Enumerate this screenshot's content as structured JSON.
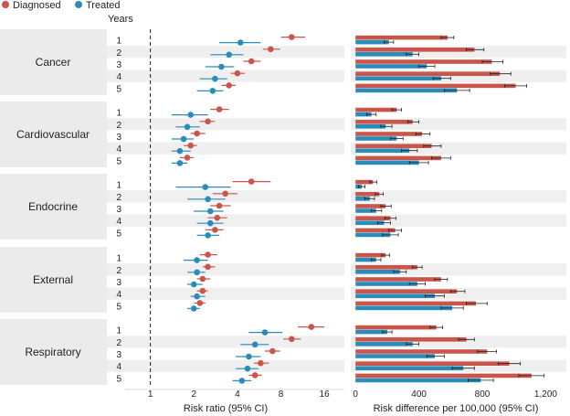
{
  "legend": {
    "items": [
      {
        "label": "Diagnosed",
        "color": "#c9554b"
      },
      {
        "label": "Treated",
        "color": "#2a8cb8"
      }
    ],
    "placement": "top-left"
  },
  "years_label": "Years",
  "chart_data": [
    {
      "type": "scatter",
      "subtype": "forest-plot",
      "xlabel": "Risk ratio (95% CI)",
      "xscale": "log",
      "xlim": [
        0.5,
        22
      ],
      "xticks": [
        1,
        2,
        4,
        8,
        16
      ],
      "xtick_labels": [
        "1",
        "2",
        "4",
        "8",
        "16"
      ],
      "reference_line": 1,
      "panels": [
        {
          "name": "Cancer",
          "years": [
            "1",
            "2",
            "3",
            "4",
            "5"
          ],
          "diagnosed": [
            {
              "v": 9.5,
              "lo": 8.0,
              "hi": 11.8
            },
            {
              "v": 6.8,
              "lo": 6.0,
              "hi": 7.9
            },
            {
              "v": 5.0,
              "lo": 4.4,
              "hi": 5.8
            },
            {
              "v": 4.0,
              "lo": 3.6,
              "hi": 4.5
            },
            {
              "v": 3.5,
              "lo": 3.1,
              "hi": 3.9
            }
          ],
          "treated": [
            {
              "v": 4.2,
              "lo": 3.0,
              "hi": 5.8
            },
            {
              "v": 3.5,
              "lo": 2.6,
              "hi": 4.4
            },
            {
              "v": 3.1,
              "lo": 2.4,
              "hi": 3.8
            },
            {
              "v": 2.8,
              "lo": 2.2,
              "hi": 3.4
            },
            {
              "v": 2.7,
              "lo": 2.1,
              "hi": 3.2
            }
          ]
        },
        {
          "name": "Cardiovascular",
          "years": [
            "1",
            "2",
            "3",
            "4",
            "5"
          ],
          "diagnosed": [
            {
              "v": 3.0,
              "lo": 2.6,
              "hi": 3.5
            },
            {
              "v": 2.5,
              "lo": 2.2,
              "hi": 2.8
            },
            {
              "v": 2.1,
              "lo": 1.9,
              "hi": 2.4
            },
            {
              "v": 1.9,
              "lo": 1.7,
              "hi": 2.1
            },
            {
              "v": 1.8,
              "lo": 1.6,
              "hi": 2.0
            }
          ],
          "treated": [
            {
              "v": 1.9,
              "lo": 1.4,
              "hi": 2.5
            },
            {
              "v": 1.8,
              "lo": 1.5,
              "hi": 2.2
            },
            {
              "v": 1.7,
              "lo": 1.4,
              "hi": 2.0
            },
            {
              "v": 1.6,
              "lo": 1.4,
              "hi": 1.9
            },
            {
              "v": 1.6,
              "lo": 1.4,
              "hi": 1.8
            }
          ]
        },
        {
          "name": "Endocrine",
          "years": [
            "1",
            "2",
            "3",
            "4",
            "5"
          ],
          "diagnosed": [
            {
              "v": 5.0,
              "lo": 3.7,
              "hi": 6.8
            },
            {
              "v": 3.3,
              "lo": 2.7,
              "hi": 4.0
            },
            {
              "v": 3.0,
              "lo": 2.6,
              "hi": 3.6
            },
            {
              "v": 2.9,
              "lo": 2.5,
              "hi": 3.4
            },
            {
              "v": 2.8,
              "lo": 2.4,
              "hi": 3.2
            }
          ],
          "treated": [
            {
              "v": 2.4,
              "lo": 1.5,
              "hi": 3.6
            },
            {
              "v": 2.5,
              "lo": 1.8,
              "hi": 3.3
            },
            {
              "v": 2.6,
              "lo": 2.0,
              "hi": 3.2
            },
            {
              "v": 2.6,
              "lo": 2.1,
              "hi": 3.2
            },
            {
              "v": 2.5,
              "lo": 2.1,
              "hi": 3.0
            }
          ]
        },
        {
          "name": "External",
          "years": [
            "1",
            "2",
            "3",
            "4",
            "5"
          ],
          "diagnosed": [
            {
              "v": 2.5,
              "lo": 2.2,
              "hi": 2.9
            },
            {
              "v": 2.5,
              "lo": 2.3,
              "hi": 2.8
            },
            {
              "v": 2.3,
              "lo": 2.1,
              "hi": 2.6
            },
            {
              "v": 2.3,
              "lo": 2.1,
              "hi": 2.5
            },
            {
              "v": 2.2,
              "lo": 2.0,
              "hi": 2.4
            }
          ],
          "treated": [
            {
              "v": 2.1,
              "lo": 1.7,
              "hi": 2.5
            },
            {
              "v": 2.1,
              "lo": 1.8,
              "hi": 2.4
            },
            {
              "v": 2.0,
              "lo": 1.8,
              "hi": 2.3
            },
            {
              "v": 2.1,
              "lo": 1.9,
              "hi": 2.4
            },
            {
              "v": 2.0,
              "lo": 1.8,
              "hi": 2.2
            }
          ]
        },
        {
          "name": "Respiratory",
          "years": [
            "1",
            "2",
            "3",
            "4",
            "5"
          ],
          "diagnosed": [
            {
              "v": 13.0,
              "lo": 10.5,
              "hi": 16.0
            },
            {
              "v": 9.5,
              "lo": 8.3,
              "hi": 11.0
            },
            {
              "v": 7.0,
              "lo": 6.2,
              "hi": 7.9
            },
            {
              "v": 5.8,
              "lo": 5.2,
              "hi": 6.6
            },
            {
              "v": 5.3,
              "lo": 4.8,
              "hi": 5.9
            }
          ],
          "treated": [
            {
              "v": 6.2,
              "lo": 4.8,
              "hi": 8.2
            },
            {
              "v": 5.3,
              "lo": 4.2,
              "hi": 6.6
            },
            {
              "v": 4.8,
              "lo": 3.9,
              "hi": 5.8
            },
            {
              "v": 4.7,
              "lo": 3.9,
              "hi": 5.6
            },
            {
              "v": 4.3,
              "lo": 3.7,
              "hi": 5.0
            }
          ]
        }
      ]
    },
    {
      "type": "bar",
      "orientation": "horizontal",
      "xlabel": "Risk difference per 100,000 (95% CI)",
      "xlim": [
        -30,
        1330
      ],
      "xticks": [
        0,
        400,
        800,
        1200
      ],
      "xtick_labels": [
        "0",
        "400",
        "800",
        "1,200"
      ],
      "panels": [
        {
          "name": "Cancer",
          "years": [
            "1",
            "2",
            "3",
            "4",
            "5"
          ],
          "diagnosed": [
            {
              "v": 580,
              "lo": 540,
              "hi": 620
            },
            {
              "v": 750,
              "lo": 700,
              "hi": 810
            },
            {
              "v": 860,
              "lo": 800,
              "hi": 930
            },
            {
              "v": 910,
              "lo": 850,
              "hi": 980
            },
            {
              "v": 1010,
              "lo": 940,
              "hi": 1080
            }
          ],
          "treated": [
            {
              "v": 210,
              "lo": 180,
              "hi": 240
            },
            {
              "v": 360,
              "lo": 320,
              "hi": 400
            },
            {
              "v": 450,
              "lo": 400,
              "hi": 500
            },
            {
              "v": 540,
              "lo": 490,
              "hi": 600
            },
            {
              "v": 640,
              "lo": 560,
              "hi": 720
            }
          ]
        },
        {
          "name": "Cardiovascular",
          "years": [
            "1",
            "2",
            "3",
            "4",
            "5"
          ],
          "diagnosed": [
            {
              "v": 260,
              "lo": 230,
              "hi": 290
            },
            {
              "v": 360,
              "lo": 330,
              "hi": 400
            },
            {
              "v": 420,
              "lo": 380,
              "hi": 470
            },
            {
              "v": 480,
              "lo": 430,
              "hi": 540
            },
            {
              "v": 540,
              "lo": 480,
              "hi": 600
            }
          ],
          "treated": [
            {
              "v": 100,
              "lo": 70,
              "hi": 130
            },
            {
              "v": 190,
              "lo": 160,
              "hi": 230
            },
            {
              "v": 260,
              "lo": 220,
              "hi": 300
            },
            {
              "v": 340,
              "lo": 290,
              "hi": 390
            },
            {
              "v": 400,
              "lo": 340,
              "hi": 460
            }
          ]
        },
        {
          "name": "Endocrine",
          "years": [
            "1",
            "2",
            "3",
            "4",
            "5"
          ],
          "diagnosed": [
            {
              "v": 110,
              "lo": 90,
              "hi": 135
            },
            {
              "v": 150,
              "lo": 125,
              "hi": 175
            },
            {
              "v": 190,
              "lo": 160,
              "hi": 225
            },
            {
              "v": 220,
              "lo": 185,
              "hi": 255
            },
            {
              "v": 250,
              "lo": 210,
              "hi": 290
            }
          ],
          "treated": [
            {
              "v": 40,
              "lo": 20,
              "hi": 60
            },
            {
              "v": 90,
              "lo": 60,
              "hi": 120
            },
            {
              "v": 130,
              "lo": 100,
              "hi": 165
            },
            {
              "v": 180,
              "lo": 140,
              "hi": 220
            },
            {
              "v": 220,
              "lo": 170,
              "hi": 270
            }
          ]
        },
        {
          "name": "External",
          "years": [
            "1",
            "2",
            "3",
            "4",
            "5"
          ],
          "diagnosed": [
            {
              "v": 190,
              "lo": 165,
              "hi": 215
            },
            {
              "v": 390,
              "lo": 360,
              "hi": 420
            },
            {
              "v": 540,
              "lo": 500,
              "hi": 580
            },
            {
              "v": 640,
              "lo": 600,
              "hi": 690
            },
            {
              "v": 760,
              "lo": 700,
              "hi": 830
            }
          ],
          "treated": [
            {
              "v": 130,
              "lo": 100,
              "hi": 160
            },
            {
              "v": 280,
              "lo": 240,
              "hi": 320
            },
            {
              "v": 390,
              "lo": 340,
              "hi": 440
            },
            {
              "v": 500,
              "lo": 440,
              "hi": 560
            },
            {
              "v": 610,
              "lo": 540,
              "hi": 680
            }
          ]
        },
        {
          "name": "Respiratory",
          "years": [
            "1",
            "2",
            "3",
            "4",
            "5"
          ],
          "diagnosed": [
            {
              "v": 510,
              "lo": 470,
              "hi": 550
            },
            {
              "v": 700,
              "lo": 650,
              "hi": 750
            },
            {
              "v": 830,
              "lo": 770,
              "hi": 890
            },
            {
              "v": 970,
              "lo": 900,
              "hi": 1040
            },
            {
              "v": 1110,
              "lo": 1030,
              "hi": 1190
            }
          ],
          "treated": [
            {
              "v": 200,
              "lo": 170,
              "hi": 230
            },
            {
              "v": 360,
              "lo": 320,
              "hi": 400
            },
            {
              "v": 500,
              "lo": 450,
              "hi": 560
            },
            {
              "v": 680,
              "lo": 610,
              "hi": 750
            },
            {
              "v": 790,
              "lo": 710,
              "hi": 870
            }
          ]
        }
      ]
    }
  ]
}
